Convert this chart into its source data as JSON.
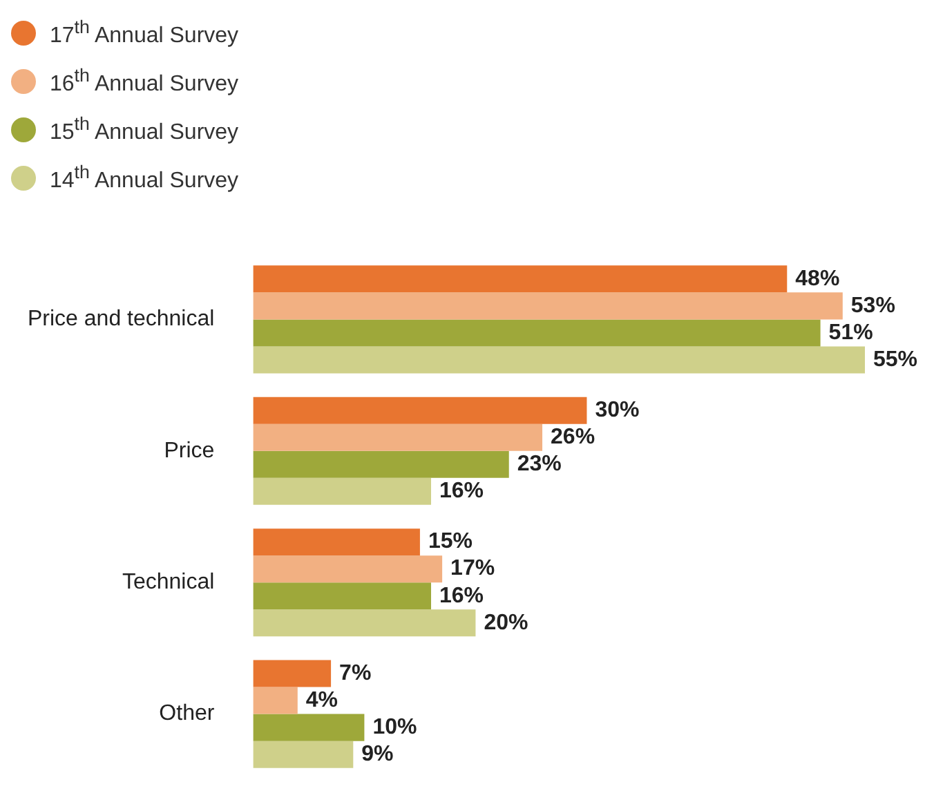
{
  "chart_data": {
    "type": "bar",
    "orientation": "horizontal",
    "legend": "top left",
    "categories": [
      "Price and technical",
      "Price",
      "Technical",
      "Other"
    ],
    "series": [
      {
        "name": "17$^{th}$ Annual Survey",
        "color": "#e87530",
        "values": [
          48,
          30,
          15,
          7
        ],
        "value_labels": [
          "48%",
          "30%",
          "15%",
          "7%"
        ]
      },
      {
        "name": "16$^{th}$ Annual Survey",
        "color": "#f2b082",
        "values": [
          53,
          26,
          17,
          4
        ],
        "value_labels": [
          "53%",
          "26%",
          "17%",
          "4%"
        ]
      },
      {
        "name": "15$^{th}$ Annual Survey",
        "color": "#9ea83a",
        "values": [
          51,
          23,
          16,
          10
        ],
        "value_labels": [
          "51%",
          "23%",
          "16%",
          "10%"
        ]
      },
      {
        "name": "14$^{th}$ Annual Survey",
        "color": "#cfd08a",
        "values": [
          55,
          16,
          20,
          9
        ],
        "value_labels": [
          "55%",
          "16%",
          "20%",
          "9%"
        ]
      }
    ]
  }
}
